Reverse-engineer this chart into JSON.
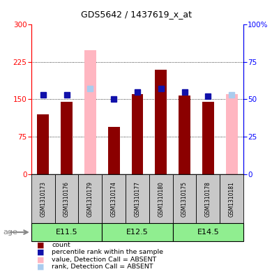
{
  "title": "GDS5642 / 1437619_x_at",
  "samples": [
    "GSM1310173",
    "GSM1310176",
    "GSM1310179",
    "GSM1310174",
    "GSM1310177",
    "GSM1310180",
    "GSM1310175",
    "GSM1310178",
    "GSM1310181"
  ],
  "red_values": [
    120,
    145,
    0,
    95,
    160,
    210,
    158,
    145,
    0
  ],
  "pink_values": [
    0,
    0,
    248,
    0,
    0,
    0,
    0,
    0,
    160
  ],
  "blue_values": [
    53,
    53,
    0,
    50,
    55,
    57,
    55,
    52,
    0
  ],
  "light_blue_values": [
    0,
    0,
    57,
    0,
    0,
    0,
    0,
    0,
    53
  ],
  "absent_mask": [
    false,
    false,
    true,
    false,
    false,
    false,
    false,
    false,
    true
  ],
  "ylim_left": [
    0,
    300
  ],
  "ylim_right": [
    0,
    100
  ],
  "yticks_left": [
    0,
    75,
    150,
    225,
    300
  ],
  "yticks_right": [
    0,
    25,
    50,
    75,
    100
  ],
  "yticklabels_right": [
    "0",
    "25",
    "50",
    "75",
    "100%"
  ],
  "groups": [
    {
      "label": "E11.5",
      "start": 0,
      "end": 3
    },
    {
      "label": "E12.5",
      "start": 3,
      "end": 6
    },
    {
      "label": "E14.5",
      "start": 6,
      "end": 9
    }
  ],
  "bar_width": 0.5,
  "marker_size": 6,
  "red_color": "#8B0000",
  "pink_color": "#FFB6C1",
  "blue_color": "#1111AA",
  "light_blue_color": "#AACCEE",
  "group_green": "#90EE90",
  "age_label": "age",
  "legend_entries": [
    {
      "color": "#8B0000",
      "label": "count"
    },
    {
      "color": "#1111AA",
      "label": "percentile rank within the sample"
    },
    {
      "color": "#FFB6C1",
      "label": "value, Detection Call = ABSENT"
    },
    {
      "color": "#AACCEE",
      "label": "rank, Detection Call = ABSENT"
    }
  ]
}
